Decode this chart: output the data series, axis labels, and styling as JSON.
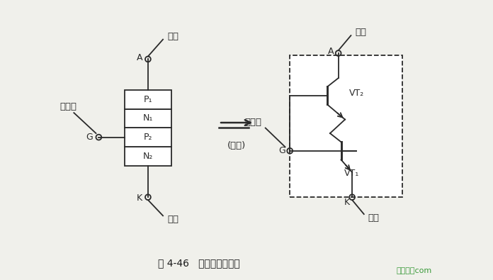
{
  "bg_color": "#f0f0eb",
  "line_color": "#2a2a2a",
  "title": "图 4-46   单向晶阀管原理",
  "title_fontsize": 10,
  "watermark": "接线图．com",
  "watermark_color": "#3a9a3a",
  "font_color": "#1a1a1a",
  "yangji": "阳极",
  "yinji": "阴极",
  "kongzhiji": "控制极",
  "P1": "P₁",
  "N1": "N₁",
  "P2": "P₂",
  "N2": "N₂",
  "dengxiao": "(等效)",
  "VT1": "VT₁",
  "VT2": "VT₂"
}
